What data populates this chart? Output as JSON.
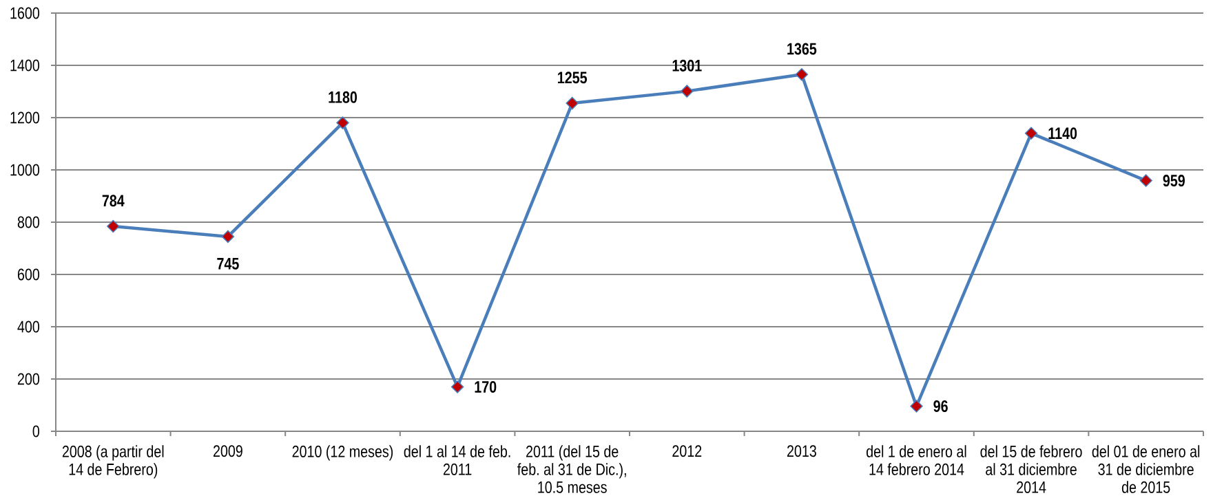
{
  "chart_data": {
    "type": "line",
    "categories": [
      "2008 (a partir del 14 de Febrero)",
      "2009",
      "2010 (12 meses)",
      "del 1 al 14 de feb. 2011",
      "2011 (del 15 de feb. al 31 de Dic.), 10.5 meses",
      "2012",
      "2013",
      "del 1 de enero al 14 febrero 2014",
      "del 15 de febrero al 31 diciembre 2014",
      "del 01 de enero al 31 de diciembre de 2015"
    ],
    "values": [
      784,
      745,
      1180,
      170,
      1255,
      1301,
      1365,
      96,
      1140,
      959
    ],
    "color": "#4a7ebb",
    "colors": [
      "#c00000",
      "#c00000",
      "#c00000",
      "#c00000",
      "#c00000",
      "#c00000",
      "#c00000",
      "#c00000",
      "#c00000",
      "#c00000"
    ],
    "marker": "diamond",
    "ylim": [
      0,
      1600
    ],
    "yticks": [
      0,
      200,
      400,
      600,
      800,
      1000,
      1200,
      1400,
      1600
    ],
    "grid": "y",
    "data_labels": true
  }
}
